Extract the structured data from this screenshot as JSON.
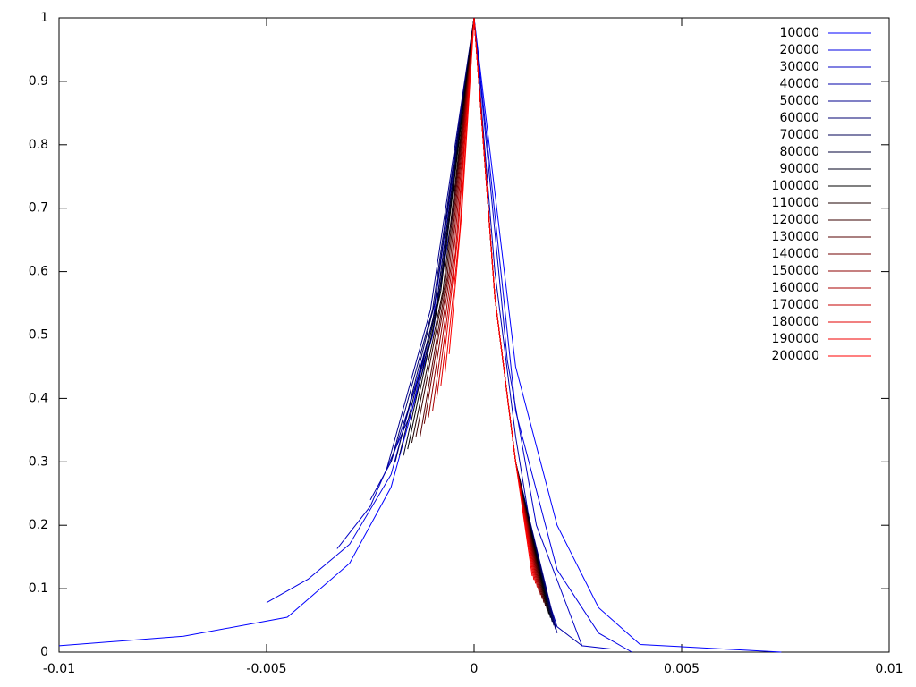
{
  "chart_data": {
    "type": "line",
    "xlim": [
      -0.01,
      0.01
    ],
    "ylim": [
      0,
      1
    ],
    "xticks": [
      -0.01,
      -0.005,
      0,
      0.005,
      0.01
    ],
    "yticks": [
      0,
      0.1,
      0.2,
      0.3,
      0.4,
      0.5,
      0.6,
      0.7,
      0.8,
      0.9,
      1
    ],
    "legend": "top-right",
    "series": [
      {
        "name": "10000",
        "color": "#0000ff",
        "x": [
          -0.01,
          -0.007,
          -0.0045,
          -0.003,
          -0.002,
          -0.001,
          0,
          0.001,
          0.002,
          0.003,
          0.004,
          0.0074
        ],
        "values": [
          0.01,
          0.025,
          0.055,
          0.14,
          0.26,
          0.5,
          1,
          0.45,
          0.2,
          0.07,
          0.012,
          0
        ]
      },
      {
        "name": "20000",
        "color": "#0000e3",
        "x": [
          -0.005,
          -0.004,
          -0.003,
          -0.002,
          -0.001,
          0,
          0.001,
          0.002,
          0.003,
          0.0038
        ],
        "values": [
          0.078,
          0.115,
          0.17,
          0.28,
          0.52,
          1,
          0.38,
          0.13,
          0.03,
          0
        ]
      },
      {
        "name": "30000",
        "color": "#0000c6",
        "x": [
          -0.0033,
          -0.0025,
          -0.0015,
          -0.0008,
          0,
          0.0008,
          0.0015,
          0.0026,
          0.0033
        ],
        "values": [
          0.163,
          0.23,
          0.38,
          0.58,
          1,
          0.46,
          0.2,
          0.01,
          0.005
        ]
      },
      {
        "name": "40000",
        "color": "#0000aa",
        "x": [
          -0.0025,
          -0.002,
          -0.001,
          -0.0005,
          0,
          0.0005,
          0.001,
          0.0015,
          0.002,
          0.0026
        ],
        "values": [
          0.24,
          0.3,
          0.5,
          0.7,
          1,
          0.6,
          0.34,
          0.14,
          0.04,
          0.01
        ]
      },
      {
        "name": "50000",
        "color": "#00008e",
        "x": [
          -0.0021,
          -0.00105,
          0,
          0.0005,
          0.001,
          0.002
        ],
        "values": [
          0.29,
          0.54,
          1,
          0.56,
          0.3,
          0.03
        ]
      },
      {
        "name": "60000",
        "color": "#000071",
        "x": [
          -0.002,
          -0.001,
          0,
          0.0005,
          0.001,
          0.00196
        ],
        "values": [
          0.3,
          0.54,
          1,
          0.56,
          0.3,
          0.036
        ]
      },
      {
        "name": "70000",
        "color": "#000055",
        "x": [
          -0.0019,
          -0.00095,
          0,
          0.0005,
          0.001,
          0.00192
        ],
        "values": [
          0.3,
          0.55,
          1,
          0.56,
          0.3,
          0.042
        ]
      },
      {
        "name": "80000",
        "color": "#000039",
        "x": [
          -0.0018,
          -0.0009,
          0,
          0.0005,
          0.001,
          0.00188
        ],
        "values": [
          0.31,
          0.55,
          1,
          0.56,
          0.3,
          0.048
        ]
      },
      {
        "name": "90000",
        "color": "#00001c",
        "x": [
          -0.0017,
          -0.00085,
          0,
          0.0005,
          0.001,
          0.00184
        ],
        "values": [
          0.31,
          0.56,
          1,
          0.56,
          0.3,
          0.054
        ]
      },
      {
        "name": "100000",
        "color": "#000000",
        "x": [
          -0.0016,
          -0.0008,
          0,
          0.0005,
          0.001,
          0.0018
        ],
        "values": [
          0.32,
          0.57,
          1,
          0.56,
          0.3,
          0.06
        ]
      },
      {
        "name": "110000",
        "color": "#1c0000",
        "x": [
          -0.0015,
          -0.00075,
          0,
          0.0005,
          0.001,
          0.00176
        ],
        "values": [
          0.33,
          0.57,
          1,
          0.56,
          0.3,
          0.066
        ]
      },
      {
        "name": "120000",
        "color": "#390000",
        "x": [
          -0.0014,
          -0.0007,
          0,
          0.0005,
          0.001,
          0.00172
        ],
        "values": [
          0.34,
          0.58,
          1,
          0.56,
          0.3,
          0.072
        ]
      },
      {
        "name": "130000",
        "color": "#550000",
        "x": [
          -0.0013,
          -0.00065,
          0,
          0.0005,
          0.001,
          0.00168
        ],
        "values": [
          0.34,
          0.59,
          1,
          0.56,
          0.3,
          0.078
        ]
      },
      {
        "name": "140000",
        "color": "#710000",
        "x": [
          -0.0012,
          -0.0006,
          0,
          0.0005,
          0.001,
          0.00164
        ],
        "values": [
          0.36,
          0.6,
          1,
          0.56,
          0.3,
          0.084
        ]
      },
      {
        "name": "150000",
        "color": "#8e0000",
        "x": [
          -0.0011,
          -0.00055,
          0,
          0.0005,
          0.001,
          0.0016
        ],
        "values": [
          0.37,
          0.61,
          1,
          0.56,
          0.3,
          0.09
        ]
      },
      {
        "name": "160000",
        "color": "#aa0000",
        "x": [
          -0.001,
          -0.0005,
          0,
          0.0005,
          0.001,
          0.00156
        ],
        "values": [
          0.38,
          0.62,
          1,
          0.56,
          0.3,
          0.096
        ]
      },
      {
        "name": "170000",
        "color": "#c60000",
        "x": [
          -0.0009,
          -0.00045,
          0,
          0.0005,
          0.001,
          0.00152
        ],
        "values": [
          0.4,
          0.63,
          1,
          0.56,
          0.3,
          0.102
        ]
      },
      {
        "name": "180000",
        "color": "#e30000",
        "x": [
          -0.0008,
          -0.0004,
          0,
          0.0005,
          0.001,
          0.00148
        ],
        "values": [
          0.42,
          0.65,
          1,
          0.56,
          0.3,
          0.108
        ]
      },
      {
        "name": "190000",
        "color": "#f00000",
        "x": [
          -0.0007,
          -0.00035,
          0,
          0.0005,
          0.001,
          0.00144
        ],
        "values": [
          0.44,
          0.66,
          1,
          0.56,
          0.3,
          0.114
        ]
      },
      {
        "name": "200000",
        "color": "#ff0000",
        "x": [
          -0.0006,
          -0.0003,
          0,
          0.0005,
          0.001,
          0.0014
        ],
        "values": [
          0.47,
          0.69,
          1,
          0.56,
          0.3,
          0.12
        ]
      }
    ]
  }
}
